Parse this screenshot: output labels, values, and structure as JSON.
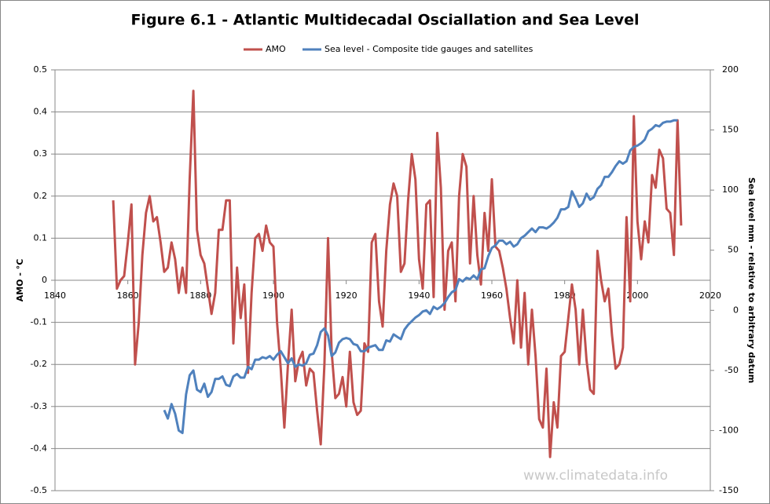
{
  "chart_data": {
    "type": "line",
    "title": "Figure 6.1 - Atlantic Multidecadal Osciallation and Sea Level",
    "y_label": "AMO - °C",
    "y2_label": "Sea level mm - relative to arbitrary datum",
    "watermark": "www.climatedata.info",
    "xlim": [
      1840,
      2020
    ],
    "xticks": [
      1840,
      1860,
      1880,
      1900,
      1920,
      1940,
      1960,
      1980,
      2000,
      2020
    ],
    "ylim": [
      -0.5,
      0.5
    ],
    "yticks": [
      0.5,
      0.4,
      0.3,
      0.2,
      0.1,
      0,
      -0.1,
      -0.2,
      -0.3,
      -0.4,
      -0.5
    ],
    "y2lim": [
      -150,
      200
    ],
    "y2ticks": [
      200,
      150,
      100,
      50,
      0,
      -50,
      -100,
      -150
    ],
    "grid": true,
    "legend": "top",
    "series": [
      {
        "name": "AMO",
        "color": "#c0504d",
        "x": [
          1856,
          1857,
          1858,
          1859,
          1860,
          1861,
          1862,
          1863,
          1864,
          1865,
          1866,
          1867,
          1868,
          1869,
          1870,
          1871,
          1872,
          1873,
          1874,
          1875,
          1876,
          1877,
          1878,
          1879,
          1880,
          1881,
          1882,
          1883,
          1884,
          1885,
          1886,
          1887,
          1888,
          1889,
          1890,
          1891,
          1892,
          1893,
          1894,
          1895,
          1896,
          1897,
          1898,
          1899,
          1900,
          1901,
          1902,
          1903,
          1904,
          1905,
          1906,
          1907,
          1908,
          1909,
          1910,
          1911,
          1912,
          1913,
          1914,
          1915,
          1916,
          1917,
          1918,
          1919,
          1920,
          1921,
          1922,
          1923,
          1924,
          1925,
          1926,
          1927,
          1928,
          1929,
          1930,
          1931,
          1932,
          1933,
          1934,
          1935,
          1936,
          1937,
          1938,
          1939,
          1940,
          1941,
          1942,
          1943,
          1944,
          1945,
          1946,
          1947,
          1948,
          1949,
          1950,
          1951,
          1952,
          1953,
          1954,
          1955,
          1956,
          1957,
          1958,
          1959,
          1960,
          1961,
          1962,
          1963,
          1964,
          1965,
          1966,
          1967,
          1968,
          1969,
          1970,
          1971,
          1972,
          1973,
          1974,
          1975,
          1976,
          1977,
          1978,
          1979,
          1980,
          1981,
          1982,
          1983,
          1984,
          1985,
          1986,
          1987,
          1988,
          1989,
          1990,
          1991,
          1992,
          1993,
          1994,
          1995,
          1996,
          1997,
          1998,
          1999,
          2000,
          2001,
          2002,
          2003,
          2004,
          2005,
          2006,
          2007,
          2008,
          2009,
          2010,
          2011,
          2012
        ],
        "values": [
          0.19,
          -0.02,
          0.0,
          0.01,
          0.09,
          0.18,
          -0.2,
          -0.1,
          0.06,
          0.16,
          0.2,
          0.14,
          0.15,
          0.09,
          0.02,
          0.03,
          0.09,
          0.05,
          -0.03,
          0.03,
          -0.03,
          0.24,
          0.45,
          0.12,
          0.06,
          0.04,
          -0.02,
          -0.08,
          -0.03,
          0.12,
          0.12,
          0.19,
          0.19,
          -0.15,
          0.03,
          -0.09,
          -0.01,
          -0.22,
          -0.03,
          0.1,
          0.11,
          0.07,
          0.13,
          0.09,
          0.08,
          -0.1,
          -0.21,
          -0.35,
          -0.2,
          -0.07,
          -0.24,
          -0.19,
          -0.17,
          -0.25,
          -0.21,
          -0.22,
          -0.31,
          -0.39,
          -0.2,
          0.1,
          -0.17,
          -0.28,
          -0.27,
          -0.23,
          -0.3,
          -0.17,
          -0.29,
          -0.32,
          -0.31,
          -0.15,
          -0.17,
          0.09,
          0.11,
          -0.05,
          -0.11,
          0.07,
          0.18,
          0.23,
          0.2,
          0.02,
          0.04,
          0.19,
          0.3,
          0.24,
          0.05,
          -0.02,
          0.18,
          0.19,
          -0.04,
          0.35,
          0.22,
          -0.07,
          0.07,
          0.09,
          -0.05,
          0.2,
          0.3,
          0.27,
          0.04,
          0.2,
          0.06,
          -0.01,
          0.16,
          0.07,
          0.24,
          0.08,
          0.07,
          0.03,
          -0.02,
          -0.09,
          -0.15,
          0.0,
          -0.16,
          -0.03,
          -0.2,
          -0.07,
          -0.18,
          -0.33,
          -0.35,
          -0.21,
          -0.42,
          -0.29,
          -0.35,
          -0.18,
          -0.17,
          -0.09,
          -0.01,
          -0.07,
          -0.2,
          -0.07,
          -0.19,
          -0.26,
          -0.27,
          0.07,
          0.0,
          -0.05,
          -0.02,
          -0.13,
          -0.21,
          -0.2,
          -0.16,
          0.15,
          -0.05,
          0.39,
          0.14,
          0.05,
          0.14,
          0.09,
          0.25,
          0.22,
          0.31,
          0.29,
          0.17,
          0.16,
          0.06,
          0.38,
          0.13
        ]
      },
      {
        "name": "Sea level - Composite tide gauges and satellites",
        "color": "#4f81bd",
        "axis": "y2",
        "x": [
          1870,
          1871,
          1872,
          1873,
          1874,
          1875,
          1876,
          1877,
          1878,
          1879,
          1880,
          1881,
          1882,
          1883,
          1884,
          1885,
          1886,
          1887,
          1888,
          1889,
          1890,
          1891,
          1892,
          1893,
          1894,
          1895,
          1896,
          1897,
          1898,
          1899,
          1900,
          1901,
          1902,
          1903,
          1904,
          1905,
          1906,
          1907,
          1908,
          1909,
          1910,
          1911,
          1912,
          1913,
          1914,
          1915,
          1916,
          1917,
          1918,
          1919,
          1920,
          1921,
          1922,
          1923,
          1924,
          1925,
          1926,
          1927,
          1928,
          1929,
          1930,
          1931,
          1932,
          1933,
          1934,
          1935,
          1936,
          1937,
          1938,
          1939,
          1940,
          1941,
          1942,
          1943,
          1944,
          1945,
          1946,
          1947,
          1948,
          1949,
          1950,
          1951,
          1952,
          1953,
          1954,
          1955,
          1956,
          1957,
          1958,
          1959,
          1960,
          1961,
          1962,
          1963,
          1964,
          1965,
          1966,
          1967,
          1968,
          1969,
          1970,
          1971,
          1972,
          1973,
          1974,
          1975,
          1976,
          1977,
          1978,
          1979,
          1980,
          1981,
          1982,
          1983,
          1984,
          1985,
          1986,
          1987,
          1988,
          1989,
          1990,
          1991,
          1992,
          1993,
          1994,
          1995,
          1996,
          1997,
          1998,
          1999,
          2000,
          2001,
          2002,
          2003,
          2004,
          2005,
          2006,
          2007,
          2008,
          2009,
          2010,
          2011
        ],
        "values": [
          -83,
          -90,
          -78,
          -86,
          -100,
          -102,
          -70,
          -54,
          -50,
          -66,
          -68,
          -61,
          -72,
          -68,
          -57,
          -57,
          -55,
          -62,
          -63,
          -55,
          -53,
          -56,
          -56,
          -47,
          -49,
          -41,
          -41,
          -39,
          -40,
          -38,
          -41,
          -37,
          -34,
          -39,
          -44,
          -40,
          -47,
          -45,
          -46,
          -44,
          -37,
          -36,
          -29,
          -18,
          -15,
          -21,
          -38,
          -35,
          -27,
          -24,
          -23,
          -24,
          -28,
          -29,
          -34,
          -34,
          -31,
          -30,
          -29,
          -33,
          -33,
          -25,
          -26,
          -20,
          -22,
          -24,
          -16,
          -12,
          -9,
          -6,
          -4,
          -1,
          0,
          -3,
          3,
          1,
          3,
          6,
          11,
          15,
          17,
          26,
          24,
          27,
          26,
          29,
          26,
          34,
          35,
          45,
          52,
          54,
          58,
          58,
          55,
          57,
          53,
          55,
          60,
          62,
          65,
          68,
          65,
          69,
          69,
          68,
          70,
          73,
          77,
          84,
          84,
          86,
          99,
          93,
          86,
          89,
          97,
          92,
          94,
          101,
          104,
          111,
          111,
          115,
          120,
          124,
          122,
          124,
          133,
          136,
          137,
          139,
          142,
          149,
          151,
          154,
          153,
          156,
          157,
          157,
          158,
          158
        ]
      }
    ]
  }
}
